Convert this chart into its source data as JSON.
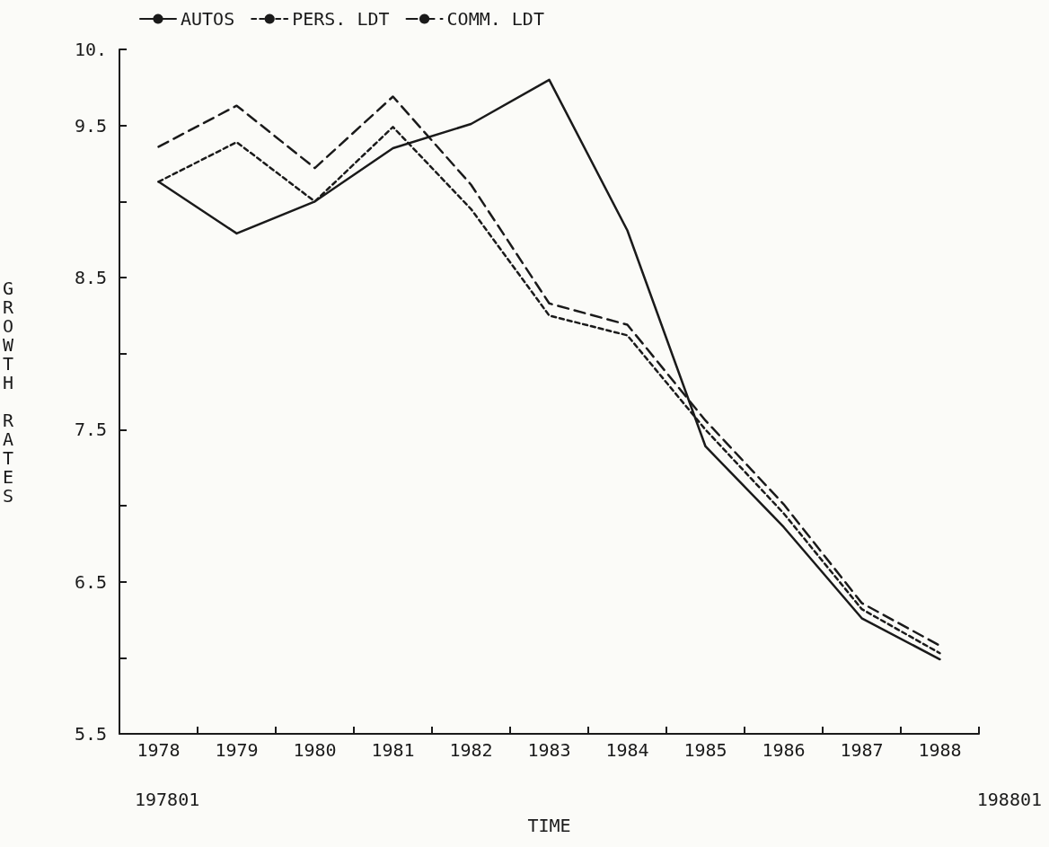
{
  "chart_data": {
    "type": "line",
    "xlabel": "TIME",
    "ylabel": "GROWTH RATES",
    "categories": [
      "1978",
      "1979",
      "1980",
      "1981",
      "1982",
      "1983",
      "1984",
      "1985",
      "1986",
      "1987",
      "1988"
    ],
    "series": [
      {
        "name": "AUTOS",
        "color": "#1a1a1a",
        "line_style": "solid",
        "values": [
          9.13,
          8.79,
          9.0,
          9.35,
          9.51,
          9.8,
          8.81,
          7.39,
          6.86,
          6.26,
          5.99
        ]
      },
      {
        "name": "PERS. LDT",
        "color": "#1a1a1a",
        "line_style": "dotted",
        "values": [
          9.13,
          9.39,
          9.0,
          9.49,
          8.95,
          8.25,
          8.12,
          7.5,
          6.95,
          6.32,
          6.03
        ]
      },
      {
        "name": "COMM. LDT",
        "color": "#1a1a1a",
        "line_style": "dashed",
        "values": [
          9.36,
          9.63,
          9.22,
          9.69,
          9.11,
          8.33,
          8.19,
          7.56,
          7.01,
          6.36,
          6.08
        ]
      }
    ],
    "ylim": [
      5.5,
      10
    ],
    "yticks": [
      {
        "value": 5.5,
        "label": "5.5"
      },
      {
        "value": 6,
        "label": null
      },
      {
        "value": 6.5,
        "label": "6.5"
      },
      {
        "value": 7,
        "label": null
      },
      {
        "value": 7.5,
        "label": "7.5"
      },
      {
        "value": 8,
        "label": null
      },
      {
        "value": 8.5,
        "label": "8.5"
      },
      {
        "value": 9,
        "label": null
      },
      {
        "value": 9.5,
        "label": "9.5"
      },
      {
        "value": 10,
        "label": "10."
      }
    ],
    "annotations": [
      "197801",
      "198801"
    ],
    "grid": false,
    "legend": "top left",
    "marker": "none"
  }
}
